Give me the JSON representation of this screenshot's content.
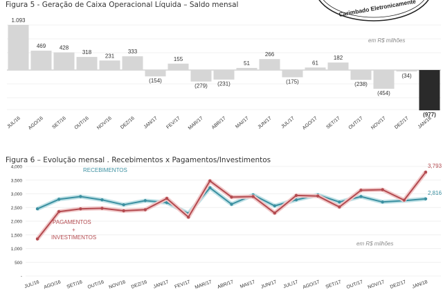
{
  "stamp_text": "Carimbado Eletronicamente",
  "chart_data": [
    {
      "type": "bar",
      "title": "Figura 5 - Geração de Caixa Operacional Líquida – Saldo mensal",
      "note": "em R$ milhões",
      "categories": [
        "JUL/16",
        "AGO/16",
        "SET/16",
        "OUT/16",
        "NOV/16",
        "DEZ/16",
        "JAN/17",
        "FEV/17",
        "MAR/17",
        "ABR/17",
        "MAI/17",
        "JUN/17",
        "JUL/17",
        "AGO/17",
        "SET/17",
        "OUT/17",
        "NOV/17",
        "DEZ/17",
        "JAN/18"
      ],
      "values": [
        1093,
        469,
        428,
        318,
        231,
        333,
        -154,
        155,
        -279,
        -231,
        51,
        266,
        -175,
        61,
        182,
        -238,
        -454,
        -34,
        -977
      ],
      "labels": [
        "1.093",
        "469",
        "428",
        "318",
        "231",
        "333",
        "(154)",
        "155",
        "(279)",
        "(231)",
        "51",
        "266",
        "(175)",
        "61",
        "182",
        "(238)",
        "(454)",
        "(34)",
        "(977)"
      ],
      "bar_color": "#d6d6d6",
      "highlight_color": "#2a2a2a",
      "grid": true
    },
    {
      "type": "line",
      "title": "Figura 6 – Evolução mensal . Recebimentos x Pagamentos/Investimentos",
      "note": "em R$ milhões",
      "categories": [
        "JUL/16",
        "AGO/16",
        "SET/16",
        "OUT/16",
        "NOV/16",
        "DEZ/16",
        "JAN/17",
        "FEV/17",
        "MAR/17",
        "ABR/17",
        "MAI/17",
        "JUN/17",
        "JUL/17",
        "AGO/17",
        "SET/17",
        "OUT/17",
        "NOV/17",
        "DEZ/17",
        "JAN/18"
      ],
      "ylim": [
        0,
        4000
      ],
      "yticks": [
        "-",
        "500",
        "1,000",
        "1,500",
        "2,000",
        "2,500",
        "3,000",
        "3,500",
        "4,000"
      ],
      "grid": true,
      "series": [
        {
          "name": "RECEBIMENTOS",
          "color": "#3a8fa0",
          "end_label": "2,816",
          "values": [
            2450,
            2800,
            2900,
            2780,
            2600,
            2750,
            2680,
            2280,
            3220,
            2620,
            2960,
            2560,
            2780,
            2960,
            2700,
            2900,
            2700,
            2750,
            2816
          ]
        },
        {
          "name": "PAGAMENTOS + INVESTIMENTOS",
          "color": "#b34a4f",
          "end_label": "3,793",
          "values": [
            1350,
            2350,
            2450,
            2470,
            2380,
            2420,
            2830,
            2150,
            3470,
            2880,
            2900,
            2300,
            2940,
            2920,
            2520,
            3130,
            3150,
            2770,
            3793
          ]
        }
      ],
      "legend_labels": {
        "recebimentos": "RECEBIMENTOS",
        "pag_line1": "PAGAMENTOS",
        "pag_plus": "+",
        "pag_line2": "INVESTIMENTOS"
      }
    }
  ]
}
